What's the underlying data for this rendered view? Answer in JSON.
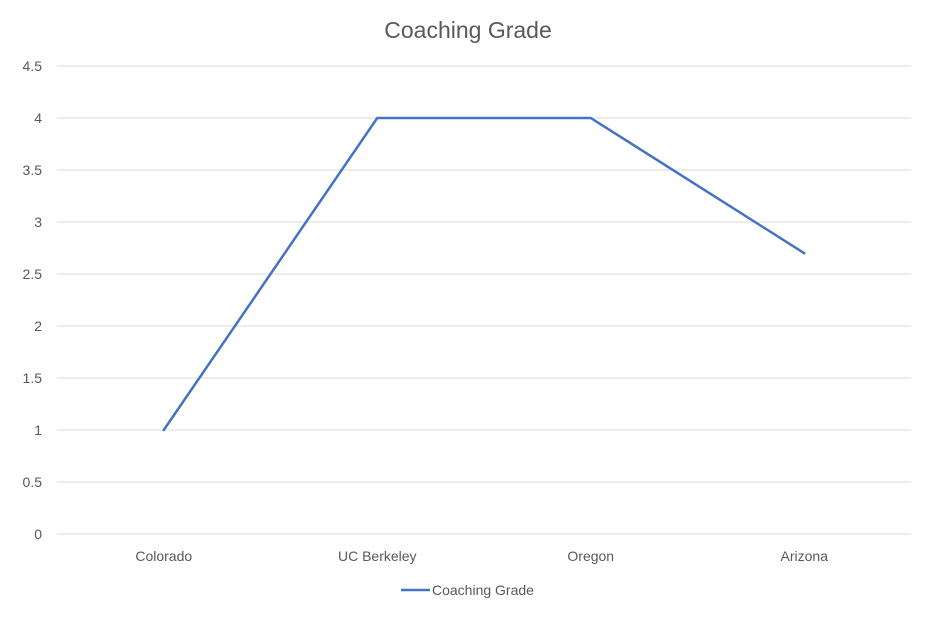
{
  "chart_data": {
    "type": "line",
    "title": "Coaching Grade",
    "xlabel": "",
    "ylabel": "",
    "categories": [
      "Colorado",
      "UC Berkeley",
      "Oregon",
      "Arizona"
    ],
    "series": [
      {
        "name": "Coaching Grade",
        "values": [
          1,
          4,
          4,
          2.7
        ],
        "color": "#4472c4"
      }
    ],
    "ylim": [
      0,
      4.5
    ],
    "y_ticks": [
      0,
      0.5,
      1,
      1.5,
      2,
      2.5,
      3,
      3.5,
      4,
      4.5
    ],
    "y_tick_labels": [
      "0",
      "0.5",
      "1",
      "1.5",
      "2",
      "2.5",
      "3",
      "3.5",
      "4",
      "4.5"
    ],
    "grid": true,
    "legend_position": "bottom",
    "gridline_color": "#d9d9d9",
    "text_color": "#595959"
  }
}
